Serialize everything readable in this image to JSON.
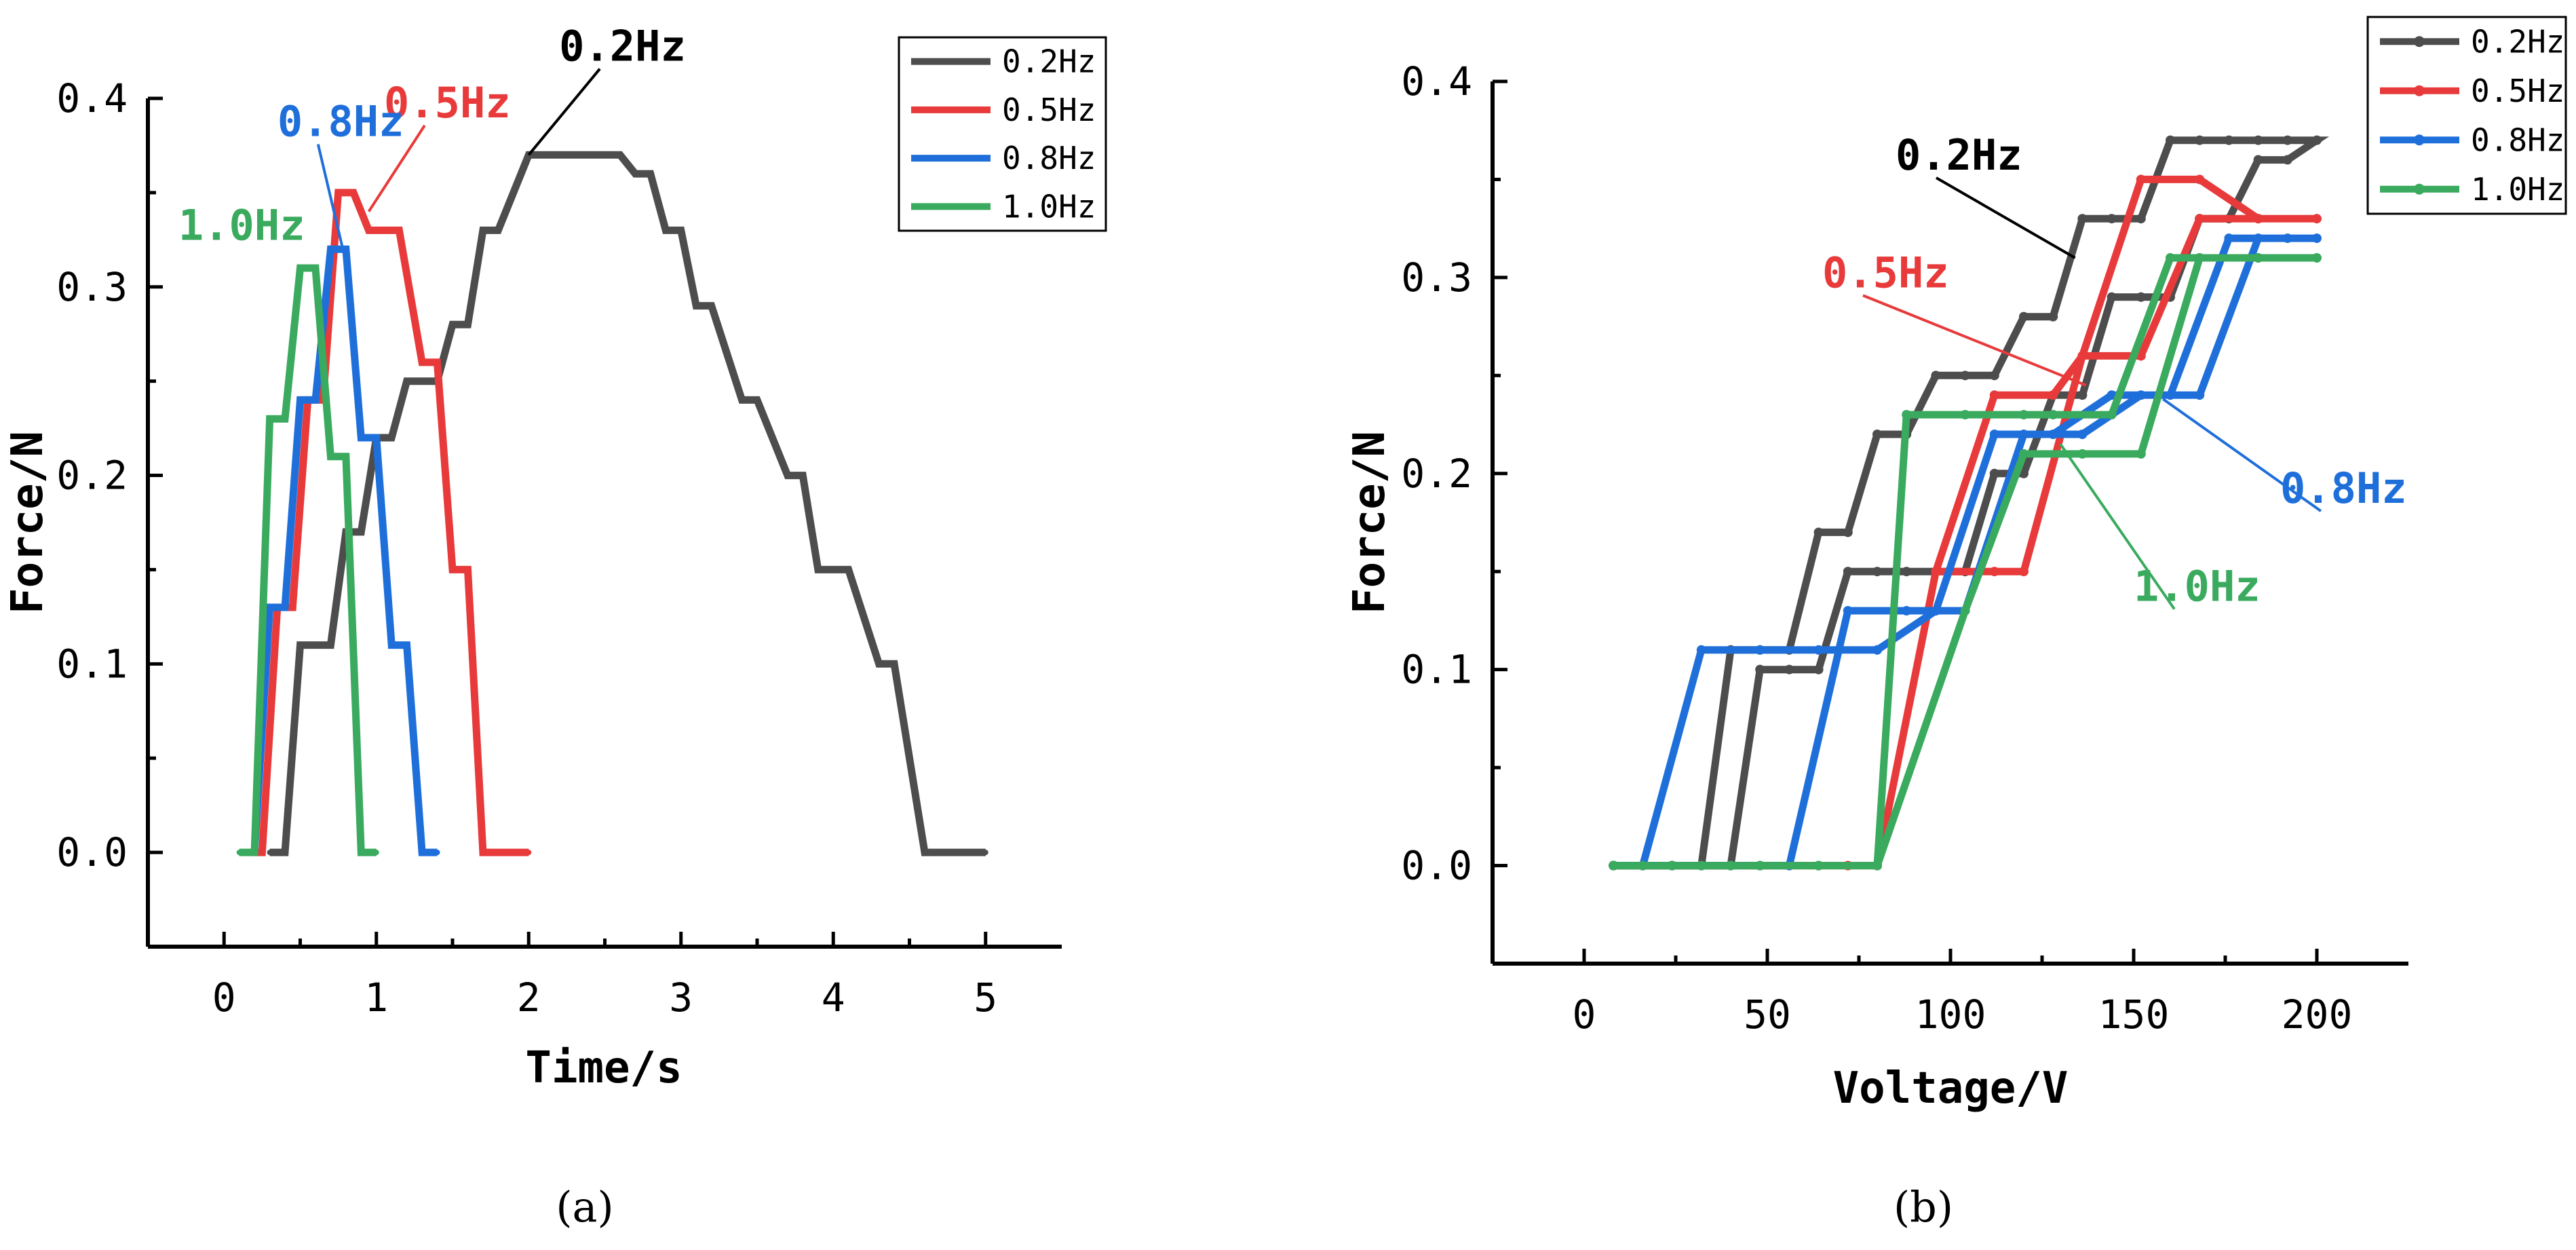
{
  "captions": {
    "a": "(a)",
    "b": "(b)"
  },
  "chart_data": [
    {
      "type": "line",
      "panel": "a",
      "xlabel": "Time/s",
      "ylabel": "Force/N",
      "xlim": [
        -0.5,
        5.5
      ],
      "ylim": [
        -0.05,
        0.4
      ],
      "xticks": [
        0,
        1,
        2,
        3,
        4,
        5
      ],
      "xtick_labels": [
        "0",
        "1",
        "2",
        "3",
        "4",
        "5"
      ],
      "yticks": [
        0.0,
        0.1,
        0.2,
        0.3,
        0.4
      ],
      "ytick_labels": [
        "0.0",
        "0.1",
        "0.2",
        "0.3",
        "0.4"
      ],
      "legend": {
        "position": "top-right",
        "markers": false
      },
      "series": [
        {
          "name": "0.2Hz",
          "color": "#4d4d4d",
          "x": [
            0.3,
            0.4,
            0.5,
            0.7,
            0.8,
            0.9,
            1.0,
            1.1,
            1.2,
            1.4,
            1.5,
            1.6,
            1.7,
            1.8,
            2.0,
            2.1,
            2.6,
            2.7,
            2.8,
            2.9,
            3.0,
            3.1,
            3.2,
            3.4,
            3.5,
            3.7,
            3.8,
            3.9,
            4.0,
            4.1,
            4.3,
            4.4,
            4.6,
            4.7,
            4.8,
            5.0
          ],
          "y": [
            0.0,
            0.0,
            0.11,
            0.11,
            0.17,
            0.17,
            0.22,
            0.22,
            0.25,
            0.25,
            0.28,
            0.28,
            0.33,
            0.33,
            0.37,
            0.37,
            0.37,
            0.36,
            0.36,
            0.33,
            0.33,
            0.29,
            0.29,
            0.24,
            0.24,
            0.2,
            0.2,
            0.15,
            0.15,
            0.15,
            0.1,
            0.1,
            0.0,
            0.0,
            0.0,
            0.0
          ]
        },
        {
          "name": "0.5Hz",
          "color": "#e83a3a",
          "x": [
            0.2,
            0.25,
            0.35,
            0.45,
            0.55,
            0.65,
            0.75,
            0.85,
            0.95,
            1.05,
            1.15,
            1.3,
            1.4,
            1.5,
            1.6,
            1.7,
            1.8,
            2.0
          ],
          "y": [
            0.0,
            0.0,
            0.13,
            0.13,
            0.24,
            0.24,
            0.35,
            0.35,
            0.33,
            0.33,
            0.33,
            0.26,
            0.26,
            0.15,
            0.15,
            0.0,
            0.0,
            0.0
          ]
        },
        {
          "name": "0.8Hz",
          "color": "#1f6fdb",
          "x": [
            0.2,
            0.3,
            0.4,
            0.5,
            0.6,
            0.7,
            0.8,
            0.9,
            1.0,
            1.1,
            1.2,
            1.3,
            1.4
          ],
          "y": [
            0.0,
            0.13,
            0.13,
            0.24,
            0.24,
            0.32,
            0.32,
            0.22,
            0.22,
            0.11,
            0.11,
            0.0,
            0.0
          ]
        },
        {
          "name": "1.0Hz",
          "color": "#3aaa5e",
          "x": [
            0.1,
            0.2,
            0.3,
            0.4,
            0.5,
            0.6,
            0.7,
            0.8,
            0.9,
            1.0
          ],
          "y": [
            0.0,
            0.0,
            0.23,
            0.23,
            0.31,
            0.31,
            0.21,
            0.21,
            0.0,
            0.0
          ]
        }
      ],
      "annotations": [
        {
          "text": "0.2Hz",
          "color": "#000000",
          "x": 2.2,
          "y": 0.42,
          "tx": 2.0,
          "ty": 0.37
        },
        {
          "text": "0.5Hz",
          "color": "#e83a3a",
          "x": 1.05,
          "y": 0.39,
          "tx": 0.95,
          "ty": 0.34
        },
        {
          "text": "0.8Hz",
          "color": "#1f6fdb",
          "x": 0.35,
          "y": 0.38,
          "tx": 0.78,
          "ty": 0.32
        },
        {
          "text": "1.0Hz",
          "color": "#3aaa5e",
          "x": -0.3,
          "y": 0.325,
          "tx": null,
          "ty": null
        }
      ]
    },
    {
      "type": "line",
      "panel": "b",
      "xlabel": "Voltage/V",
      "ylabel": "Force/N",
      "xlim": [
        -25,
        225
      ],
      "ylim": [
        -0.05,
        0.4
      ],
      "xticks": [
        0,
        50,
        100,
        150,
        200
      ],
      "xtick_labels": [
        "0",
        "50",
        "100",
        "150",
        "200"
      ],
      "yticks": [
        0.0,
        0.1,
        0.2,
        0.3,
        0.4
      ],
      "ytick_labels": [
        "0.0",
        "0.1",
        "0.2",
        "0.3",
        "0.4"
      ],
      "legend": {
        "position": "top-right",
        "markers": true
      },
      "series": [
        {
          "name": "0.2Hz",
          "color": "#4d4d4d",
          "x": [
            8,
            24,
            32,
            40,
            48,
            56,
            64,
            72,
            80,
            88,
            96,
            104,
            112,
            120,
            128,
            136,
            144,
            152,
            160,
            168,
            176,
            184,
            192,
            200,
            192,
            184,
            176,
            168,
            160,
            152,
            144,
            136,
            128,
            120,
            112,
            104,
            96,
            88,
            80,
            72,
            64,
            56,
            48,
            40,
            32,
            24,
            16,
            8
          ],
          "y": [
            0.0,
            0.0,
            0.0,
            0.11,
            0.11,
            0.11,
            0.17,
            0.17,
            0.22,
            0.22,
            0.25,
            0.25,
            0.25,
            0.28,
            0.28,
            0.33,
            0.33,
            0.33,
            0.37,
            0.37,
            0.37,
            0.37,
            0.37,
            0.37,
            0.36,
            0.36,
            0.33,
            0.33,
            0.29,
            0.29,
            0.29,
            0.24,
            0.24,
            0.2,
            0.2,
            0.15,
            0.15,
            0.15,
            0.15,
            0.15,
            0.1,
            0.1,
            0.1,
            0.0,
            0.0,
            0.0,
            0.0,
            0.0
          ]
        },
        {
          "name": "0.5Hz",
          "color": "#e83a3a",
          "x": [
            8,
            24,
            40,
            56,
            72,
            80,
            96,
            112,
            128,
            136,
            152,
            168,
            184,
            200,
            184,
            168,
            152,
            136,
            120,
            112,
            96,
            80,
            64,
            48,
            32,
            16,
            8
          ],
          "y": [
            0.0,
            0.0,
            0.0,
            0.0,
            0.0,
            0.0,
            0.15,
            0.24,
            0.24,
            0.26,
            0.35,
            0.35,
            0.33,
            0.33,
            0.33,
            0.33,
            0.26,
            0.26,
            0.15,
            0.15,
            0.15,
            0.0,
            0.0,
            0.0,
            0.0,
            0.0,
            0.0
          ]
        },
        {
          "name": "0.8Hz",
          "color": "#1f6fdb",
          "x": [
            8,
            16,
            32,
            48,
            64,
            80,
            96,
            112,
            128,
            144,
            160,
            176,
            192,
            200,
            184,
            168,
            152,
            136,
            120,
            104,
            88,
            72,
            56,
            40,
            24,
            8
          ],
          "y": [
            0.0,
            0.0,
            0.11,
            0.11,
            0.11,
            0.11,
            0.13,
            0.22,
            0.22,
            0.24,
            0.24,
            0.32,
            0.32,
            0.32,
            0.32,
            0.24,
            0.24,
            0.22,
            0.22,
            0.13,
            0.13,
            0.13,
            0.0,
            0.0,
            0.0,
            0.0
          ]
        },
        {
          "name": "1.0Hz",
          "color": "#3aaa5e",
          "x": [
            8,
            24,
            40,
            48,
            64,
            80,
            88,
            104,
            120,
            128,
            144,
            160,
            168,
            184,
            200,
            184,
            168,
            152,
            136,
            120,
            104,
            80,
            64,
            48,
            32,
            16,
            8
          ],
          "y": [
            0.0,
            0.0,
            0.0,
            0.0,
            0.0,
            0.0,
            0.23,
            0.23,
            0.23,
            0.23,
            0.23,
            0.31,
            0.31,
            0.31,
            0.31,
            0.31,
            0.31,
            0.21,
            0.21,
            0.21,
            0.13,
            0.0,
            0.0,
            0.0,
            0.0,
            0.0,
            0.0
          ]
        }
      ],
      "annotations": [
        {
          "text": "0.2Hz",
          "color": "#000000",
          "x": 85,
          "y": 0.355,
          "tx": 134,
          "ty": 0.31
        },
        {
          "text": "0.5Hz",
          "color": "#e83a3a",
          "x": 65,
          "y": 0.295,
          "tx": 137,
          "ty": 0.245
        },
        {
          "text": "0.8Hz",
          "color": "#1f6fdb",
          "x": 190,
          "y": 0.185,
          "tx": 158,
          "ty": 0.238
        },
        {
          "text": "1.0Hz",
          "color": "#3aaa5e",
          "x": 150,
          "y": 0.135,
          "tx": 130,
          "ty": 0.215
        }
      ]
    }
  ]
}
